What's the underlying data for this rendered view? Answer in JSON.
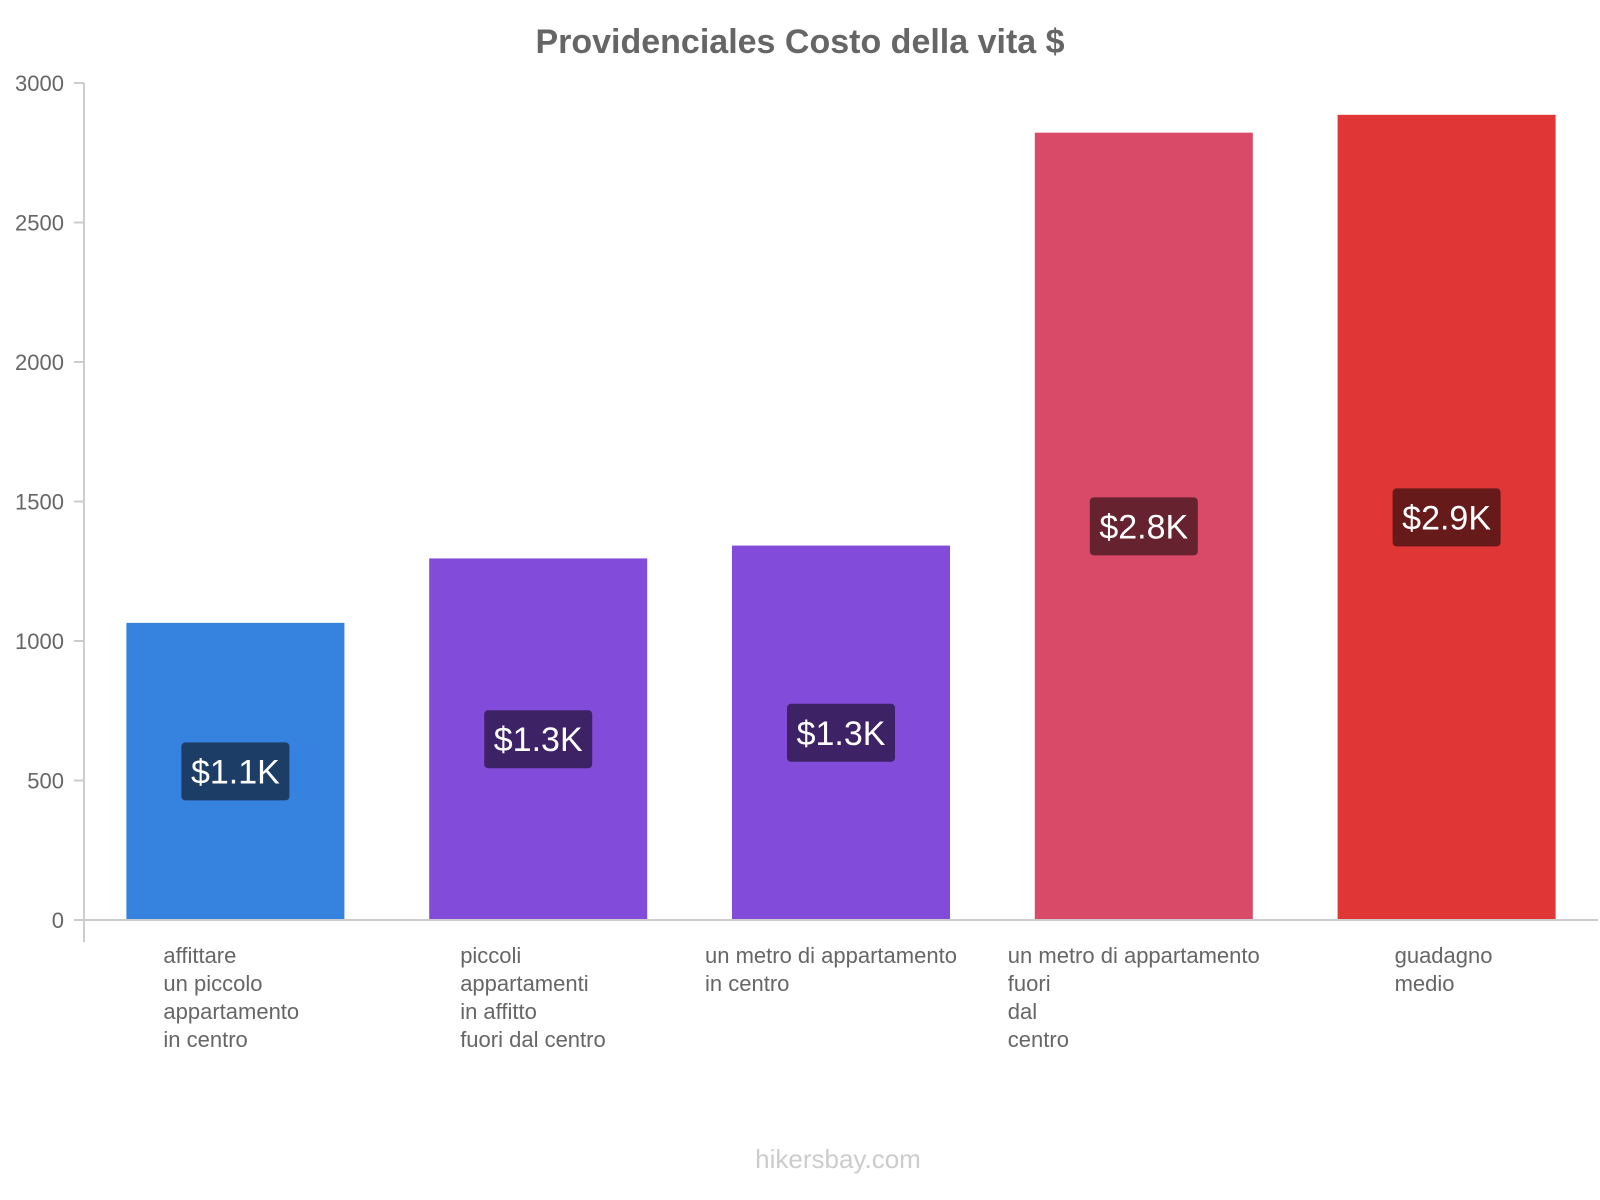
{
  "chart_data": {
    "type": "bar",
    "title": "Providenciales Costo della vita $",
    "xlabel": "",
    "ylabel": "",
    "ylim": [
      0,
      3000
    ],
    "yticks": [
      0,
      500,
      1000,
      1500,
      2000,
      2500,
      3000
    ],
    "grid": false,
    "categories": [
      [
        "affittare",
        "un piccolo",
        "appartamento",
        "in centro"
      ],
      [
        "piccoli",
        "appartamenti",
        "in affitto",
        "fuori dal centro"
      ],
      [
        "un metro di appartamento",
        "in centro"
      ],
      [
        "un metro di appartamento",
        "fuori",
        "dal",
        "centro"
      ],
      [
        "guadagno",
        "medio"
      ]
    ],
    "values": [
      1065,
      1296,
      1342,
      2822,
      2886
    ],
    "value_labels": [
      "$1.1K",
      "$1.3K",
      "$1.3K",
      "$2.8K",
      "$2.9K"
    ],
    "bar_colors": [
      "#3682DF",
      "#824BD9",
      "#824BD9",
      "#D84A68",
      "#E03636"
    ],
    "label_bg_colors": [
      "#1C3D66",
      "#3D2266",
      "#3D2266",
      "#66222F",
      "#661A1A"
    ]
  },
  "watermark": "hikersbay.com"
}
